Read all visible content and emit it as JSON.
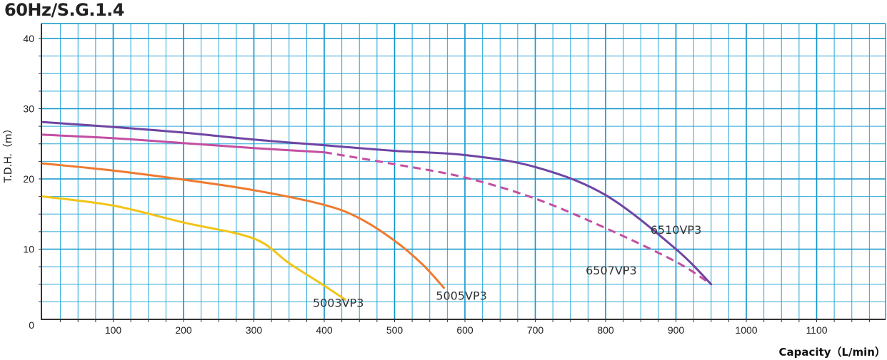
{
  "chart_data": {
    "type": "line",
    "title": "60Hz/S.G.1.4",
    "xlabel": "Capacity（L/min）",
    "ylabel": "T.D.H.（m）",
    "xlim": [
      0,
      1200
    ],
    "ylim": [
      0,
      42
    ],
    "x_ticks": [
      "100",
      "200",
      "300",
      "400",
      "500",
      "600",
      "700",
      "800",
      "900",
      "1000",
      "1100"
    ],
    "y_ticks": [
      "0",
      "10",
      "20",
      "30",
      "40"
    ],
    "grid": true,
    "colors": {
      "grid": "#29a8d6",
      "grid_major": "#0e93c9",
      "axis": "#333333"
    },
    "series": [
      {
        "name": "5003VP3",
        "color": "#f2c418",
        "points": [
          [
            0,
            17.5
          ],
          [
            100,
            16.2
          ],
          [
            200,
            13.8
          ],
          [
            300,
            11.5
          ],
          [
            350,
            8
          ],
          [
            400,
            4.8
          ],
          [
            430,
            2.8
          ]
        ],
        "label_at": [
          420,
          1.8
        ]
      },
      {
        "name": "5005VP3",
        "color": "#ef7a30",
        "points": [
          [
            0,
            22.2
          ],
          [
            100,
            21.2
          ],
          [
            200,
            19.9
          ],
          [
            300,
            18.4
          ],
          [
            400,
            16.3
          ],
          [
            450,
            14.4
          ],
          [
            500,
            11.2
          ],
          [
            540,
            7.8
          ],
          [
            570,
            4.5
          ]
        ],
        "label_at": [
          595,
          2.8
        ]
      },
      {
        "name": "6507VP3",
        "color": "#c34fa2",
        "points": [
          [
            0,
            26.3
          ],
          [
            100,
            25.8
          ],
          [
            200,
            25.1
          ],
          [
            300,
            24.4
          ],
          [
            400,
            23.8
          ],
          [
            500,
            22.1
          ],
          [
            600,
            20.2
          ],
          [
            700,
            17.2
          ],
          [
            800,
            13.0
          ],
          [
            900,
            8.2
          ],
          [
            950,
            5.0
          ]
        ],
        "solid_until": 400,
        "label_at": [
          808,
          6.4
        ]
      },
      {
        "name": "6510VP3",
        "color": "#6f45a3",
        "points": [
          [
            0,
            28.1
          ],
          [
            100,
            27.4
          ],
          [
            200,
            26.6
          ],
          [
            300,
            25.6
          ],
          [
            400,
            24.8
          ],
          [
            500,
            24.0
          ],
          [
            600,
            23.4
          ],
          [
            700,
            21.7
          ],
          [
            800,
            17.7
          ],
          [
            900,
            10.0
          ],
          [
            950,
            5.0
          ]
        ],
        "label_at": [
          900,
          12.2
        ]
      }
    ]
  }
}
